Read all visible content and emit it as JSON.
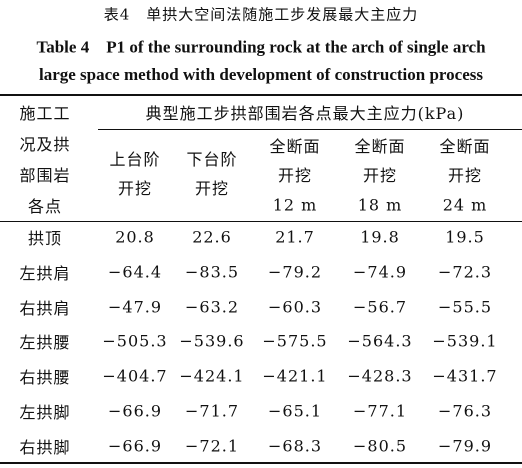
{
  "header": {
    "title_cn": "表4　单拱大空间法随施工步发展最大主应力",
    "title_en": [
      "Table 4　P1 of the surrounding rock at the arch of single arch",
      "large space method with development of construction process"
    ]
  },
  "table": {
    "corner": [
      "施工工",
      "况及拱",
      "部围岩",
      "各点"
    ],
    "group_header": "典型施工步拱部围岩各点最大主应力(kPa)",
    "columns": [
      [
        "上台阶",
        "开挖"
      ],
      [
        "下台阶",
        "开挖"
      ],
      [
        "全断面",
        "开挖",
        "12 m"
      ],
      [
        "全断面",
        "开挖",
        "18 m"
      ],
      [
        "全断面",
        "开挖",
        "24 m"
      ]
    ],
    "rows": [
      [
        "拱顶",
        "20.8",
        "22.6",
        "21.7",
        "19.8",
        "19.5"
      ],
      [
        "左拱肩",
        "−64.4",
        "−83.5",
        "−79.2",
        "−74.9",
        "−72.3"
      ],
      [
        "右拱肩",
        "−47.9",
        "−63.2",
        "−60.3",
        "−56.7",
        "−55.5"
      ],
      [
        "左拱腰",
        "−505.3",
        "−539.6",
        "−575.5",
        "−564.3",
        "−539.1"
      ],
      [
        "右拱腰",
        "−404.7",
        "−424.1",
        "−421.1",
        "−428.3",
        "−431.7"
      ],
      [
        "左拱脚",
        "−66.9",
        "−71.7",
        "−65.1",
        "−77.1",
        "−76.3"
      ],
      [
        "右拱脚",
        "−66.9",
        "−72.1",
        "−68.3",
        "−80.5",
        "−79.9"
      ]
    ]
  }
}
